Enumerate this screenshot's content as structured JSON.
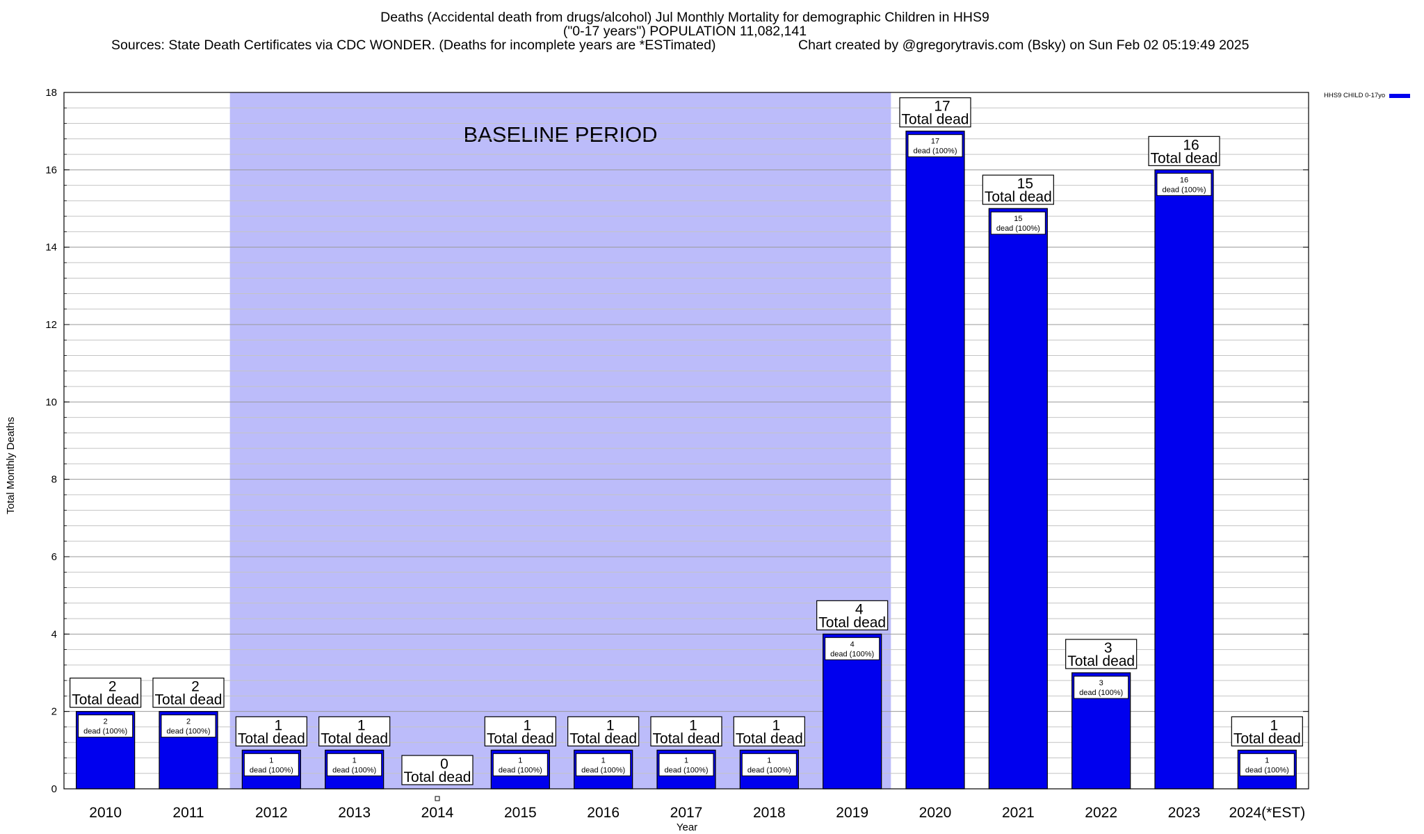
{
  "header": {
    "title_line1": "Deaths (Accidental death from drugs/alcohol) Jul Monthly Mortality for demographic Children in HHS9",
    "title_line2": "(\"0-17 years\") POPULATION 11,082,141",
    "sources": "Sources: State Death Certificates via CDC WONDER. (Deaths for incomplete years are *ESTimated)",
    "credit": "Chart created by @gregorytravis.com (Bsky) on Sun Feb 02 05:19:49 2025"
  },
  "chart_data": {
    "type": "bar",
    "xlabel": "Year",
    "ylabel": "Total Monthly Deaths",
    "ylim": [
      0,
      18
    ],
    "yticks": [
      0,
      2,
      4,
      6,
      8,
      10,
      12,
      14,
      16,
      18
    ],
    "grid": true,
    "legend_position": "top-right",
    "categories": [
      "2010",
      "2011",
      "2012",
      "2013",
      "2014",
      "2015",
      "2016",
      "2017",
      "2018",
      "2019",
      "2020",
      "2021",
      "2022",
      "2023",
      "2024(*EST)"
    ],
    "series": [
      {
        "name": "HHS9 CHILD 0-17yo",
        "color": "#0000ee",
        "values": [
          2,
          2,
          1,
          1,
          0,
          1,
          1,
          1,
          1,
          4,
          17,
          15,
          3,
          16,
          1
        ]
      }
    ],
    "total_label_suffix": "Total dead",
    "inner_label_suffix": "dead (100%)",
    "baseline": {
      "label": "BASELINE PERIOD",
      "from": "2012",
      "to": "2019",
      "color": "#bcbcfa"
    }
  }
}
